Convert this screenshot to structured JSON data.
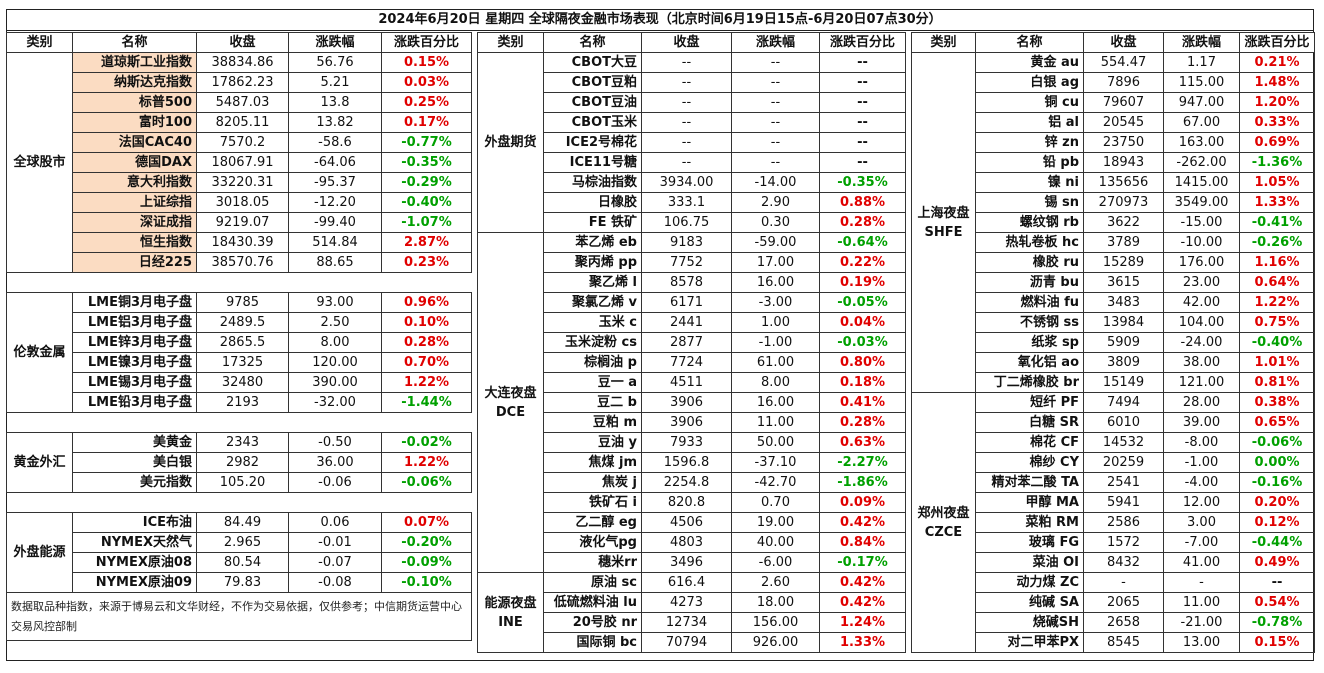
{
  "title": "2024年6月20日 星期四 全球隔夜金融市场表现（北京时间6月19日15点-6月20日07点30分）",
  "headers": [
    "类别",
    "名称",
    "收盘",
    "涨跌幅",
    "涨跌百分比"
  ],
  "colors": {
    "up": "#e00000",
    "down": "#00a000",
    "stock_name_bg": "#fbdcc2"
  },
  "left": {
    "stocks": {
      "category": "全球股市",
      "rows": [
        {
          "name": "道琼斯工业指数",
          "close": "38834.86",
          "change": "56.76",
          "pct": "0.15%",
          "dir": "pos"
        },
        {
          "name": "纳斯达克指数",
          "close": "17862.23",
          "change": "5.21",
          "pct": "0.03%",
          "dir": "pos"
        },
        {
          "name": "标普500",
          "close": "5487.03",
          "change": "13.8",
          "pct": "0.25%",
          "dir": "pos"
        },
        {
          "name": "富时100",
          "close": "8205.11",
          "change": "13.82",
          "pct": "0.17%",
          "dir": "pos"
        },
        {
          "name": "法国CAC40",
          "close": "7570.2",
          "change": "-58.6",
          "pct": "-0.77%",
          "dir": "neg"
        },
        {
          "name": "德国DAX",
          "close": "18067.91",
          "change": "-64.06",
          "pct": "-0.35%",
          "dir": "neg"
        },
        {
          "name": "意大利指数",
          "close": "33220.31",
          "change": "-95.37",
          "pct": "-0.29%",
          "dir": "neg"
        },
        {
          "name": "上证综指",
          "close": "3018.05",
          "change": "-12.20",
          "pct": "-0.40%",
          "dir": "neg"
        },
        {
          "name": "深证成指",
          "close": "9219.07",
          "change": "-99.40",
          "pct": "-1.07%",
          "dir": "neg"
        },
        {
          "name": "恒生指数",
          "close": "18430.39",
          "change": "514.84",
          "pct": "2.87%",
          "dir": "pos"
        },
        {
          "name": "日经225",
          "close": "38570.76",
          "change": "88.65",
          "pct": "0.23%",
          "dir": "pos"
        }
      ]
    },
    "lme": {
      "category": "伦敦金属",
      "rows": [
        {
          "name": "LME铜3月电子盘",
          "close": "9785",
          "change": "93.00",
          "pct": "0.96%",
          "dir": "pos"
        },
        {
          "name": "LME铝3月电子盘",
          "close": "2489.5",
          "change": "2.50",
          "pct": "0.10%",
          "dir": "pos"
        },
        {
          "name": "LME锌3月电子盘",
          "close": "2865.5",
          "change": "8.00",
          "pct": "0.28%",
          "dir": "pos"
        },
        {
          "name": "LME镍3月电子盘",
          "close": "17325",
          "change": "120.00",
          "pct": "0.70%",
          "dir": "pos"
        },
        {
          "name": "LME锡3月电子盘",
          "close": "32480",
          "change": "390.00",
          "pct": "1.22%",
          "dir": "pos"
        },
        {
          "name": "LME铅3月电子盘",
          "close": "2193",
          "change": "-32.00",
          "pct": "-1.44%",
          "dir": "neg"
        }
      ]
    },
    "fx": {
      "category": "黄金外汇",
      "rows": [
        {
          "name": "美黄金",
          "close": "2343",
          "change": "-0.50",
          "pct": "-0.02%",
          "dir": "neg"
        },
        {
          "name": "美白银",
          "close": "2982",
          "change": "36.00",
          "pct": "1.22%",
          "dir": "pos"
        },
        {
          "name": "美元指数",
          "close": "105.20",
          "change": "-0.06",
          "pct": "-0.06%",
          "dir": "neg"
        }
      ]
    },
    "energy": {
      "category": "外盘能源",
      "rows": [
        {
          "name": "ICE布油",
          "close": "84.49",
          "change": "0.06",
          "pct": "0.07%",
          "dir": "pos"
        },
        {
          "name": "NYMEX天然气",
          "close": "2.965",
          "change": "-0.01",
          "pct": "-0.20%",
          "dir": "neg"
        },
        {
          "name": "NYMEX原油08",
          "close": "80.54",
          "change": "-0.07",
          "pct": "-0.09%",
          "dir": "neg"
        },
        {
          "name": "NYMEX原油09",
          "close": "79.83",
          "change": "-0.08",
          "pct": "-0.10%",
          "dir": "neg"
        }
      ]
    },
    "note": "数据取品种指数，来源于博易云和文华财经，不作为交易依据，仅供参考；中信期货运营中心交易风控部制"
  },
  "middle": {
    "foreign": {
      "category": "外盘期货",
      "rows": [
        {
          "name": "CBOT大豆",
          "close": "--",
          "change": "--",
          "pct": "--",
          "dir": "neu"
        },
        {
          "name": "CBOT豆粕",
          "close": "--",
          "change": "--",
          "pct": "--",
          "dir": "neu"
        },
        {
          "name": "CBOT豆油",
          "close": "--",
          "change": "--",
          "pct": "--",
          "dir": "neu"
        },
        {
          "name": "CBOT玉米",
          "close": "--",
          "change": "--",
          "pct": "--",
          "dir": "neu"
        },
        {
          "name": "ICE2号棉花",
          "close": "--",
          "change": "--",
          "pct": "--",
          "dir": "neu"
        },
        {
          "name": "ICE11号糖",
          "close": "--",
          "change": "--",
          "pct": "--",
          "dir": "neu"
        },
        {
          "name": "马棕油指数",
          "close": "3934.00",
          "change": "-14.00",
          "pct": "-0.35%",
          "dir": "neg"
        },
        {
          "name": "日橡胶",
          "close": "333.1",
          "change": "2.90",
          "pct": "0.88%",
          "dir": "pos"
        },
        {
          "name": "FE 铁矿",
          "close": "106.75",
          "change": "0.30",
          "pct": "0.28%",
          "dir": "pos"
        }
      ]
    },
    "dce": {
      "category": "大连夜盘",
      "category2": "DCE",
      "rows": [
        {
          "name": "苯乙烯 eb",
          "close": "9183",
          "change": "-59.00",
          "pct": "-0.64%",
          "dir": "neg"
        },
        {
          "name": "聚丙烯 pp",
          "close": "7752",
          "change": "17.00",
          "pct": "0.22%",
          "dir": "pos"
        },
        {
          "name": "聚乙烯 l",
          "close": "8578",
          "change": "16.00",
          "pct": "0.19%",
          "dir": "pos"
        },
        {
          "name": "聚氯乙烯 v",
          "close": "6171",
          "change": "-3.00",
          "pct": "-0.05%",
          "dir": "neg"
        },
        {
          "name": "玉米 c",
          "close": "2441",
          "change": "1.00",
          "pct": "0.04%",
          "dir": "pos"
        },
        {
          "name": "玉米淀粉 cs",
          "close": "2877",
          "change": "-1.00",
          "pct": "-0.03%",
          "dir": "neg"
        },
        {
          "name": "棕榈油 p",
          "close": "7724",
          "change": "61.00",
          "pct": "0.80%",
          "dir": "pos"
        },
        {
          "name": "豆一 a",
          "close": "4511",
          "change": "8.00",
          "pct": "0.18%",
          "dir": "pos"
        },
        {
          "name": "豆二 b",
          "close": "3906",
          "change": "16.00",
          "pct": "0.41%",
          "dir": "pos"
        },
        {
          "name": "豆粕 m",
          "close": "3906",
          "change": "11.00",
          "pct": "0.28%",
          "dir": "pos"
        },
        {
          "name": "豆油 y",
          "close": "7933",
          "change": "50.00",
          "pct": "0.63%",
          "dir": "pos"
        },
        {
          "name": "焦煤 jm",
          "close": "1596.8",
          "change": "-37.10",
          "pct": "-2.27%",
          "dir": "neg"
        },
        {
          "name": "焦炭 j",
          "close": "2254.8",
          "change": "-42.70",
          "pct": "-1.86%",
          "dir": "neg"
        },
        {
          "name": "铁矿石 i",
          "close": "820.8",
          "change": "0.70",
          "pct": "0.09%",
          "dir": "pos"
        },
        {
          "name": "乙二醇 eg",
          "close": "4506",
          "change": "19.00",
          "pct": "0.42%",
          "dir": "pos"
        },
        {
          "name": "液化气pg",
          "close": "4803",
          "change": "40.00",
          "pct": "0.84%",
          "dir": "pos"
        },
        {
          "name": "穗米rr",
          "close": "3496",
          "change": "-6.00",
          "pct": "-0.17%",
          "dir": "neg"
        }
      ]
    },
    "ine": {
      "category": "能源夜盘",
      "category2": "INE",
      "rows": [
        {
          "name": "原油 sc",
          "close": "616.4",
          "change": "2.60",
          "pct": "0.42%",
          "dir": "pos"
        },
        {
          "name": "低硫燃料油 lu",
          "close": "4273",
          "change": "18.00",
          "pct": "0.42%",
          "dir": "pos"
        },
        {
          "name": "20号胶 nr",
          "close": "12734",
          "change": "156.00",
          "pct": "1.24%",
          "dir": "pos"
        },
        {
          "name": "国际铜 bc",
          "close": "70794",
          "change": "926.00",
          "pct": "1.33%",
          "dir": "pos"
        }
      ]
    }
  },
  "right": {
    "shfe": {
      "category": "上海夜盘",
      "category2": "SHFE",
      "rows": [
        {
          "name": "黄金 au",
          "close": "554.47",
          "change": "1.17",
          "pct": "0.21%",
          "dir": "pos"
        },
        {
          "name": "白银 ag",
          "close": "7896",
          "change": "115.00",
          "pct": "1.48%",
          "dir": "pos"
        },
        {
          "name": "铜 cu",
          "close": "79607",
          "change": "947.00",
          "pct": "1.20%",
          "dir": "pos"
        },
        {
          "name": "铝 al",
          "close": "20545",
          "change": "67.00",
          "pct": "0.33%",
          "dir": "pos"
        },
        {
          "name": "锌 zn",
          "close": "23750",
          "change": "163.00",
          "pct": "0.69%",
          "dir": "pos"
        },
        {
          "name": "铅 pb",
          "close": "18943",
          "change": "-262.00",
          "pct": "-1.36%",
          "dir": "neg"
        },
        {
          "name": "镍 ni",
          "close": "135656",
          "change": "1415.00",
          "pct": "1.05%",
          "dir": "pos"
        },
        {
          "name": "锡 sn",
          "close": "270973",
          "change": "3549.00",
          "pct": "1.33%",
          "dir": "pos"
        },
        {
          "name": "螺纹钢 rb",
          "close": "3622",
          "change": "-15.00",
          "pct": "-0.41%",
          "dir": "neg"
        },
        {
          "name": "热轧卷板 hc",
          "close": "3789",
          "change": "-10.00",
          "pct": "-0.26%",
          "dir": "neg"
        },
        {
          "name": "橡胶 ru",
          "close": "15289",
          "change": "176.00",
          "pct": "1.16%",
          "dir": "pos"
        },
        {
          "name": "沥青 bu",
          "close": "3615",
          "change": "23.00",
          "pct": "0.64%",
          "dir": "pos"
        },
        {
          "name": "燃料油 fu",
          "close": "3483",
          "change": "42.00",
          "pct": "1.22%",
          "dir": "pos"
        },
        {
          "name": "不锈钢 ss",
          "close": "13984",
          "change": "104.00",
          "pct": "0.75%",
          "dir": "pos"
        },
        {
          "name": "纸浆 sp",
          "close": "5909",
          "change": "-24.00",
          "pct": "-0.40%",
          "dir": "neg"
        },
        {
          "name": "氧化铝 ao",
          "close": "3809",
          "change": "38.00",
          "pct": "1.01%",
          "dir": "pos"
        },
        {
          "name": "丁二烯橡胶 br",
          "close": "15149",
          "change": "121.00",
          "pct": "0.81%",
          "dir": "pos"
        }
      ]
    },
    "czce": {
      "category": "郑州夜盘",
      "category2": "CZCE",
      "rows": [
        {
          "name": "短纤 PF",
          "close": "7494",
          "change": "28.00",
          "pct": "0.38%",
          "dir": "pos"
        },
        {
          "name": "白糖 SR",
          "close": "6010",
          "change": "39.00",
          "pct": "0.65%",
          "dir": "pos"
        },
        {
          "name": "棉花 CF",
          "close": "14532",
          "change": "-8.00",
          "pct": "-0.06%",
          "dir": "neg"
        },
        {
          "name": "棉纱 CY",
          "close": "20259",
          "change": "-1.00",
          "pct": "0.00%",
          "dir": "neg"
        },
        {
          "name": "精对苯二酸 TA",
          "close": "2541",
          "change": "-4.00",
          "pct": "-0.16%",
          "dir": "neg"
        },
        {
          "name": "甲醇 MA",
          "close": "5941",
          "change": "12.00",
          "pct": "0.20%",
          "dir": "pos"
        },
        {
          "name": "菜粕 RM",
          "close": "2586",
          "change": "3.00",
          "pct": "0.12%",
          "dir": "pos"
        },
        {
          "name": "玻璃 FG",
          "close": "1572",
          "change": "-7.00",
          "pct": "-0.44%",
          "dir": "neg"
        },
        {
          "name": "菜油 OI",
          "close": "8432",
          "change": "41.00",
          "pct": "0.49%",
          "dir": "pos"
        },
        {
          "name": "动力煤 ZC",
          "close": "-",
          "change": "-",
          "pct": "--",
          "dir": "neu"
        },
        {
          "name": "纯碱 SA",
          "close": "2065",
          "change": "11.00",
          "pct": "0.54%",
          "dir": "pos"
        },
        {
          "name": "烧碱SH",
          "close": "2658",
          "change": "-21.00",
          "pct": "-0.78%",
          "dir": "neg"
        },
        {
          "name": "对二甲苯PX",
          "close": "8545",
          "change": "13.00",
          "pct": "0.15%",
          "dir": "pos"
        }
      ]
    }
  }
}
